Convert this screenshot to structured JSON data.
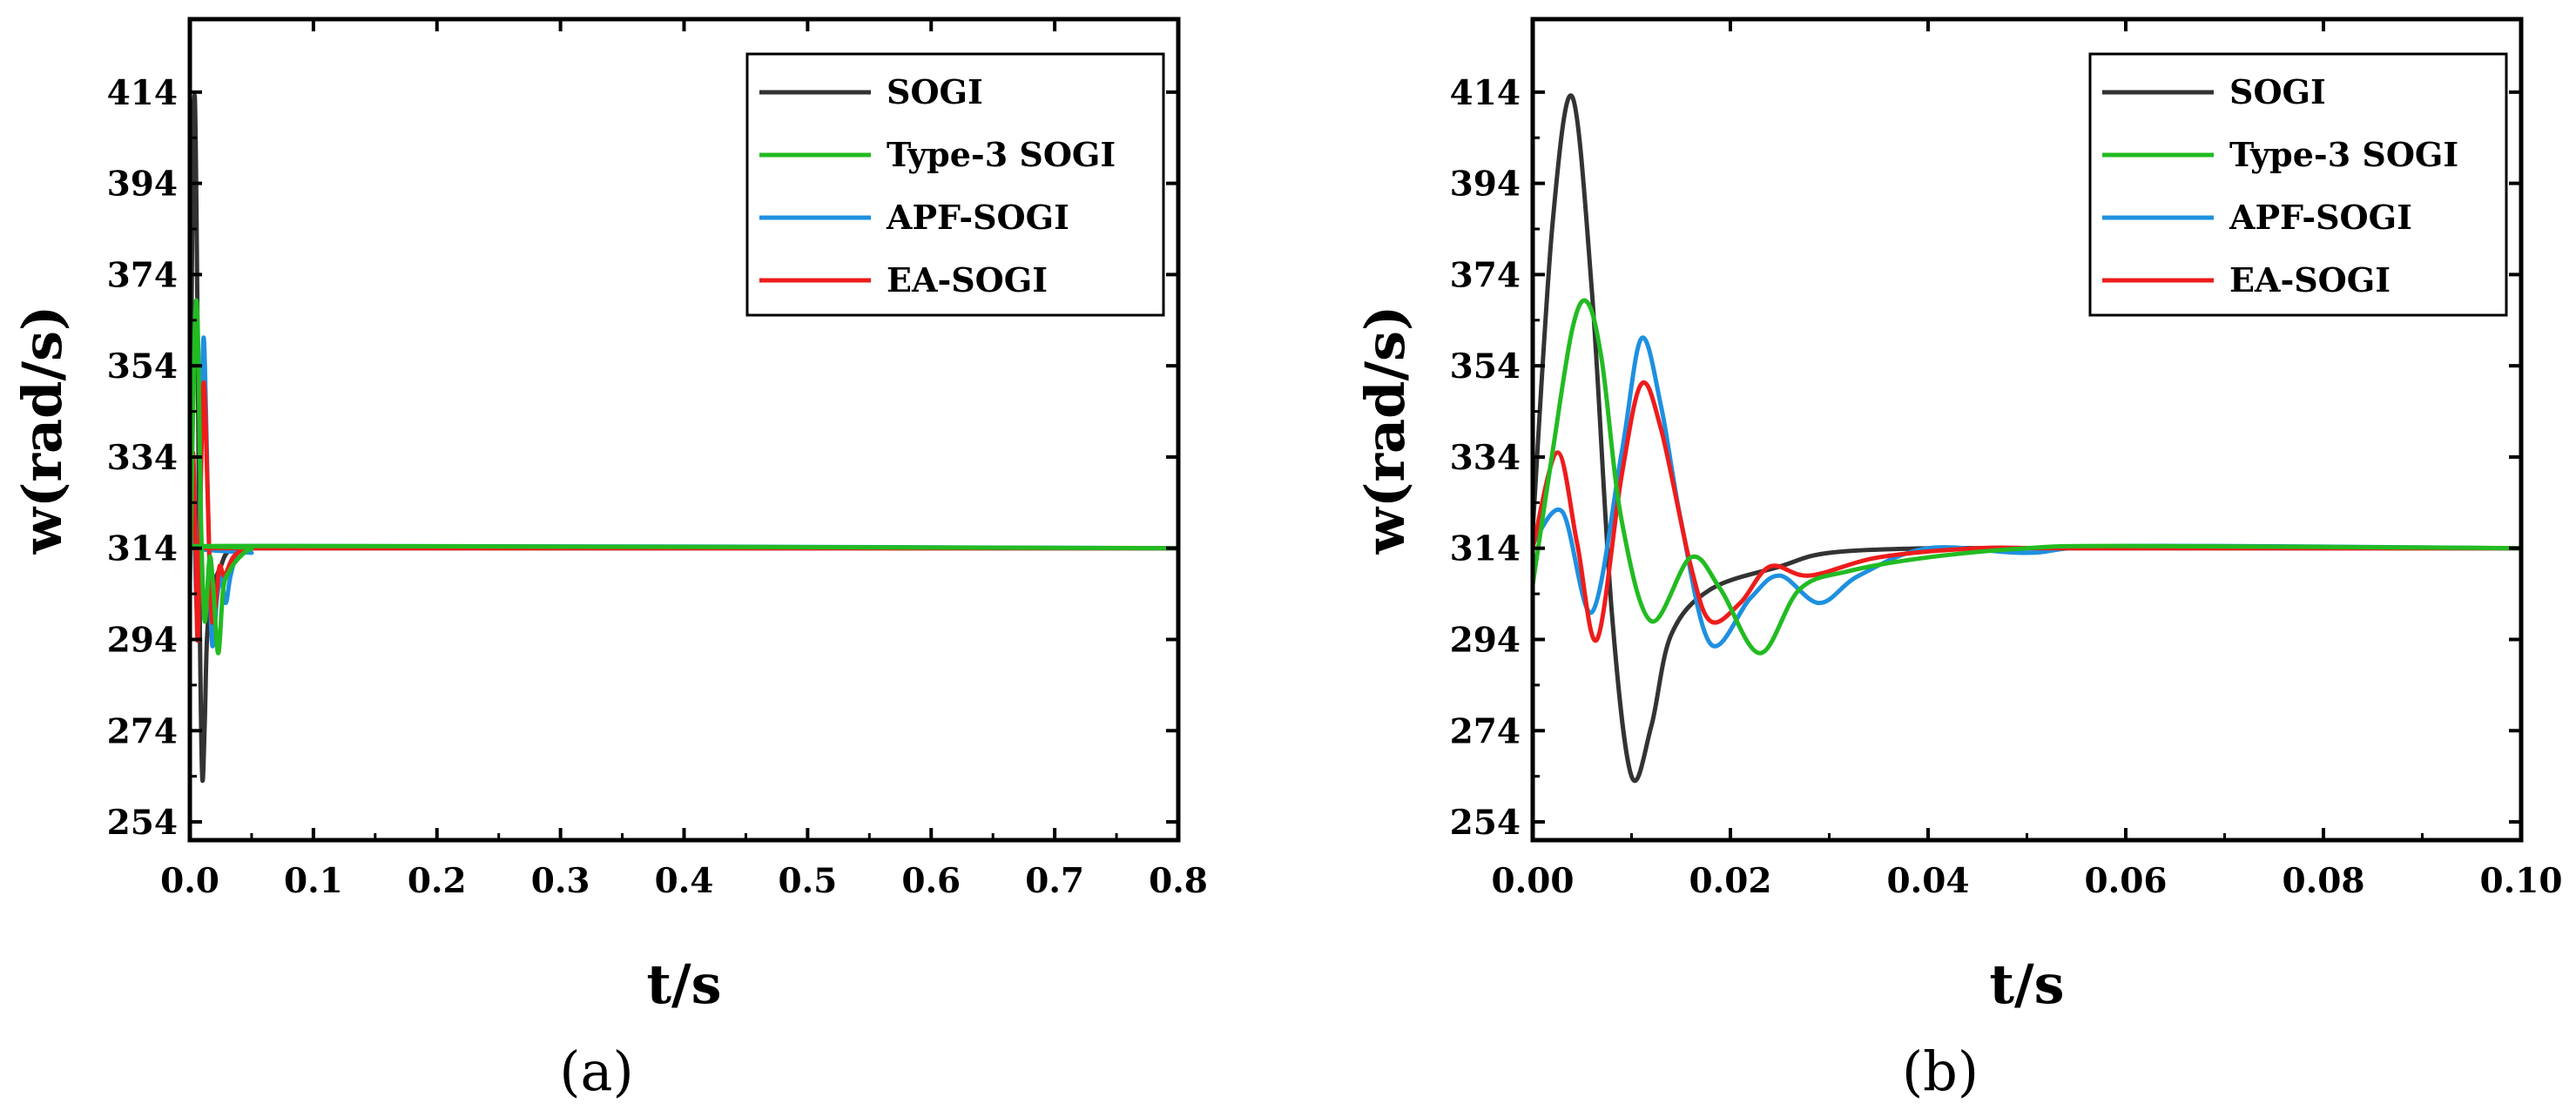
{
  "chart_data": [
    {
      "type": "line",
      "panel_label": "(a)",
      "xlabel": "t/s",
      "ylabel": "w(rad/s)",
      "xlim": [
        0,
        0.8
      ],
      "ylim": [
        250,
        430
      ],
      "xticks": [
        0,
        0.1,
        0.2,
        0.3,
        0.4,
        0.5,
        0.6,
        0.7,
        0.8
      ],
      "xtick_labels": [
        "0.0",
        "0.1",
        "0.2",
        "0.3",
        "0.4",
        "0.5",
        "0.6",
        "0.7",
        "0.8"
      ],
      "yticks": [
        254,
        274,
        294,
        314,
        334,
        354,
        374,
        394,
        414
      ],
      "ytick_labels": [
        "254",
        "274",
        "294",
        "314",
        "334",
        "354",
        "374",
        "394",
        "414"
      ],
      "legend_position": "top-right",
      "series": [
        {
          "name": "SOGI",
          "color": "#333333",
          "x": [
            0,
            0.002,
            0.004,
            0.006,
            0.008,
            0.01,
            0.012,
            0.014,
            0.018,
            0.025,
            0.03,
            0.04,
            0.05,
            0.8
          ],
          "y": [
            318,
            385,
            413,
            370,
            300,
            264,
            275,
            295,
            305,
            310,
            313,
            314,
            314,
            314
          ]
        },
        {
          "name": "Type-3 SOGI",
          "color": "#22bb22",
          "x": [
            0,
            0.002,
            0.004,
            0.0055,
            0.007,
            0.009,
            0.012,
            0.016,
            0.019,
            0.023,
            0.027,
            0.032,
            0.04,
            0.05,
            0.06,
            0.8
          ],
          "y": [
            306,
            335,
            362,
            368,
            355,
            320,
            298,
            312,
            305,
            291,
            305,
            309,
            312,
            314,
            314.5,
            314
          ]
        },
        {
          "name": "APF-SOGI",
          "color": "#1e90e0",
          "x": [
            0,
            0.003,
            0.006,
            0.009,
            0.011,
            0.013,
            0.015,
            0.018,
            0.022,
            0.025,
            0.029,
            0.033,
            0.04,
            0.05,
            0.06,
            0.8
          ],
          "y": [
            315,
            322,
            300,
            335,
            360,
            345,
            320,
            293,
            303,
            308,
            302,
            308,
            314,
            313,
            314.5,
            314
          ]
        },
        {
          "name": "EA-SOGI",
          "color": "#ee1c1c",
          "x": [
            0,
            0.0025,
            0.0045,
            0.0065,
            0.009,
            0.011,
            0.013,
            0.016,
            0.018,
            0.021,
            0.024,
            0.028,
            0.035,
            0.045,
            0.055,
            0.8
          ],
          "y": [
            314,
            335,
            315,
            294,
            330,
            350,
            340,
            310,
            298,
            302,
            310,
            308,
            312,
            314,
            314,
            314
          ]
        }
      ]
    },
    {
      "type": "line",
      "panel_label": "(b)",
      "xlabel": "t/s",
      "ylabel": "w(rad/s)",
      "xlim": [
        0,
        0.1
      ],
      "ylim": [
        250,
        430
      ],
      "xticks": [
        0,
        0.02,
        0.04,
        0.06,
        0.08,
        0.1
      ],
      "xtick_labels": [
        "0.00",
        "0.02",
        "0.04",
        "0.06",
        "0.08",
        "0.10"
      ],
      "yticks": [
        254,
        274,
        294,
        314,
        334,
        354,
        374,
        394,
        414
      ],
      "ytick_labels": [
        "254",
        "274",
        "294",
        "314",
        "334",
        "354",
        "374",
        "394",
        "414"
      ],
      "legend_position": "top-right",
      "series": [
        {
          "name": "SOGI",
          "color": "#333333",
          "x": [
            0,
            0.002,
            0.004,
            0.006,
            0.008,
            0.01,
            0.012,
            0.014,
            0.018,
            0.025,
            0.03,
            0.04,
            0.05,
            0.1
          ],
          "y": [
            318,
            385,
            413,
            370,
            300,
            264,
            275,
            295,
            305,
            310,
            313,
            314,
            314,
            314
          ]
        },
        {
          "name": "Type-3 SOGI",
          "color": "#22bb22",
          "x": [
            0,
            0.002,
            0.004,
            0.0055,
            0.007,
            0.009,
            0.012,
            0.016,
            0.019,
            0.023,
            0.027,
            0.032,
            0.04,
            0.05,
            0.06,
            0.1
          ],
          "y": [
            306,
            335,
            362,
            368,
            355,
            320,
            298,
            312,
            305,
            291,
            305,
            309,
            312,
            314,
            314.5,
            314
          ]
        },
        {
          "name": "APF-SOGI",
          "color": "#1e90e0",
          "x": [
            0,
            0.003,
            0.006,
            0.009,
            0.011,
            0.013,
            0.015,
            0.018,
            0.022,
            0.025,
            0.029,
            0.033,
            0.04,
            0.05,
            0.06,
            0.1
          ],
          "y": [
            315,
            322,
            300,
            335,
            360,
            345,
            320,
            293,
            303,
            308,
            302,
            308,
            314,
            313,
            314.5,
            314
          ]
        },
        {
          "name": "EA-SOGI",
          "color": "#ee1c1c",
          "x": [
            0,
            0.0025,
            0.0045,
            0.0065,
            0.009,
            0.011,
            0.013,
            0.016,
            0.018,
            0.021,
            0.024,
            0.028,
            0.035,
            0.045,
            0.055,
            0.1
          ],
          "y": [
            314,
            335,
            315,
            294,
            330,
            350,
            340,
            310,
            298,
            302,
            310,
            308,
            312,
            314,
            314,
            314
          ]
        }
      ]
    }
  ]
}
